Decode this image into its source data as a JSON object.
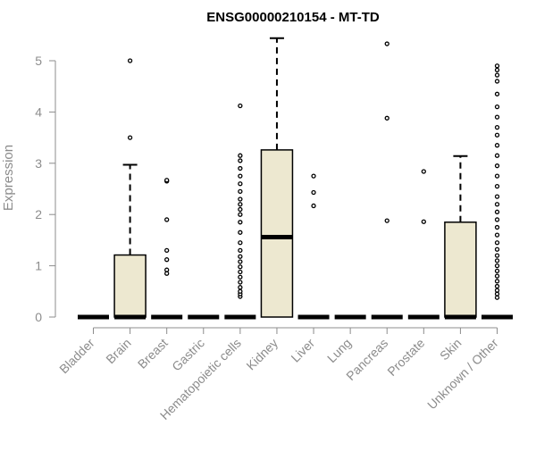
{
  "chart_data": {
    "type": "box",
    "title": "ENSG00000210154 - MT-TD",
    "ylabel": "Expression",
    "xlabel": "",
    "ylim": [
      0,
      5.5
    ],
    "yticks": [
      0,
      1,
      2,
      3,
      4,
      5
    ],
    "grid": false,
    "legend": "none",
    "box_fill": "#ede8d0",
    "line_color": "#000000",
    "axis_color": "#8c8c8c",
    "categories": [
      "Bladder",
      "Brain",
      "Breast",
      "Gastric",
      "Hematopoietic cells",
      "Kidney",
      "Liver",
      "Lung",
      "Pancreas",
      "Prostate",
      "Skin",
      "Unknown / Other"
    ],
    "boxes": [
      {
        "category": "Bladder",
        "q1": 0,
        "median": 0,
        "q3": 0,
        "whisker_low": 0,
        "whisker_high": 0,
        "outliers": []
      },
      {
        "category": "Brain",
        "q1": 0,
        "median": 0,
        "q3": 1.21,
        "whisker_low": 0,
        "whisker_high": 2.97,
        "outliers": [
          3.5,
          5.0
        ]
      },
      {
        "category": "Breast",
        "q1": 0,
        "median": 0,
        "q3": 0,
        "whisker_low": 0,
        "whisker_high": 0,
        "outliers": [
          0.85,
          0.92,
          1.12,
          1.3,
          1.9,
          2.65,
          2.67
        ]
      },
      {
        "category": "Gastric",
        "q1": 0,
        "median": 0,
        "q3": 0,
        "whisker_low": 0,
        "whisker_high": 0,
        "outliers": []
      },
      {
        "category": "Hematopoietic cells",
        "q1": 0,
        "median": 0,
        "q3": 0,
        "whisker_low": 0,
        "whisker_high": 0,
        "outliers": [
          0.4,
          0.45,
          0.5,
          0.58,
          0.68,
          0.78,
          0.88,
          0.98,
          1.08,
          1.18,
          1.3,
          1.45,
          1.65,
          1.85,
          2.0,
          2.1,
          2.2,
          2.3,
          2.45,
          2.6,
          2.75,
          2.9,
          3.05,
          3.15,
          4.12
        ]
      },
      {
        "category": "Kidney",
        "q1": 0,
        "median": 1.56,
        "q3": 3.26,
        "whisker_low": 0,
        "whisker_high": 5.44,
        "outliers": []
      },
      {
        "category": "Liver",
        "q1": 0,
        "median": 0,
        "q3": 0,
        "whisker_low": 0,
        "whisker_high": 0,
        "outliers": [
          2.17,
          2.43,
          2.75
        ]
      },
      {
        "category": "Lung",
        "q1": 0,
        "median": 0,
        "q3": 0,
        "whisker_low": 0,
        "whisker_high": 0,
        "outliers": []
      },
      {
        "category": "Pancreas",
        "q1": 0,
        "median": 0,
        "q3": 0,
        "whisker_low": 0,
        "whisker_high": 0,
        "outliers": [
          1.88,
          3.88,
          5.33
        ]
      },
      {
        "category": "Prostate",
        "q1": 0,
        "median": 0,
        "q3": 0,
        "whisker_low": 0,
        "whisker_high": 0,
        "outliers": [
          1.86,
          2.84
        ]
      },
      {
        "category": "Skin",
        "q1": 0,
        "median": 0,
        "q3": 1.85,
        "whisker_low": 0,
        "whisker_high": 3.14,
        "outliers": []
      },
      {
        "category": "Unknown / Other",
        "q1": 0,
        "median": 0,
        "q3": 0,
        "whisker_low": 0,
        "whisker_high": 0,
        "outliers": [
          0.38,
          0.45,
          0.52,
          0.6,
          0.7,
          0.8,
          0.9,
          1.0,
          1.1,
          1.2,
          1.32,
          1.45,
          1.6,
          1.75,
          1.9,
          2.05,
          2.2,
          2.35,
          2.55,
          2.75,
          2.95,
          3.15,
          3.35,
          3.55,
          3.7,
          3.9,
          4.1,
          4.35,
          4.6,
          4.72,
          4.82,
          4.9
        ]
      }
    ]
  }
}
